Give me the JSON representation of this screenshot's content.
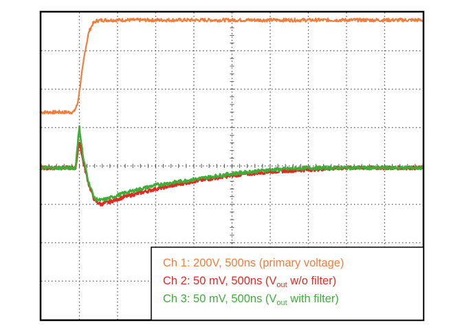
{
  "colors": {
    "ch1": "#f07e3a",
    "ch2": "#e02a22",
    "ch3": "#3fae37",
    "grid": "#555555",
    "frame": "#000000",
    "background": "#ffffff"
  },
  "legend": {
    "entries": [
      {
        "prefix": "Ch 1: 200V, 500ns (primary voltage)",
        "sub": "",
        "suffix": ""
      },
      {
        "prefix": "Ch 2: 50 mV, 500ns (V",
        "sub": "out",
        "suffix": " w/o filter)"
      },
      {
        "prefix": "Ch 3: 50 mV, 500ns (V",
        "sub": "out",
        "suffix": " with filter)"
      }
    ]
  },
  "chart_data": {
    "type": "line",
    "title": "",
    "xlabel": "",
    "ylabel": "",
    "xlim": [
      0,
      10
    ],
    "ylim": [
      0,
      8
    ],
    "grid": true,
    "legend_position": "bottom-right",
    "series": [
      {
        "name": "Ch 1: 200V, 500ns (primary voltage)",
        "color": "#f07e3a",
        "x": [
          0,
          0.85,
          0.95,
          1.05,
          1.15,
          1.25,
          1.35,
          1.45,
          1.6,
          1.8,
          2.2,
          3,
          5,
          7,
          10
        ],
        "y": [
          5.4,
          5.4,
          5.6,
          6.3,
          7.0,
          7.5,
          7.7,
          7.78,
          7.8,
          7.8,
          7.8,
          7.8,
          7.8,
          7.8,
          7.8
        ]
      },
      {
        "name": "Ch 2: 50 mV, 500ns (Vout w/o filter)",
        "color": "#e02a22",
        "x": [
          0,
          0.9,
          0.95,
          1.0,
          1.1,
          1.25,
          1.4,
          1.55,
          1.75,
          2.2,
          3,
          4,
          5,
          6,
          7,
          8,
          9,
          10
        ],
        "y": [
          3.95,
          3.95,
          4.3,
          4.65,
          4.1,
          3.5,
          3.1,
          3.0,
          3.05,
          3.2,
          3.4,
          3.6,
          3.75,
          3.85,
          3.9,
          3.95,
          3.95,
          3.95
        ]
      },
      {
        "name": "Ch 3: 50 mV, 500ns (Vout with filter)",
        "color": "#3fae37",
        "x": [
          0,
          0.9,
          0.95,
          1.0,
          1.1,
          1.25,
          1.4,
          1.55,
          1.75,
          2.2,
          3,
          4,
          5,
          6,
          7,
          8,
          9,
          10
        ],
        "y": [
          3.95,
          3.95,
          4.55,
          5.0,
          4.2,
          3.55,
          3.15,
          3.1,
          3.15,
          3.3,
          3.5,
          3.65,
          3.8,
          3.9,
          3.95,
          3.95,
          3.95,
          3.95
        ]
      }
    ]
  }
}
